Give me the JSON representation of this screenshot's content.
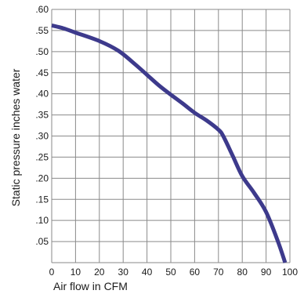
{
  "chart_data": {
    "type": "line",
    "title": "",
    "xlabel": "Air flow in CFM",
    "ylabel": "Static pressure inches water",
    "xlim": [
      0,
      100
    ],
    "ylim": [
      0,
      0.6
    ],
    "grid": true,
    "x_ticks": [
      0,
      10,
      20,
      30,
      40,
      50,
      60,
      70,
      80,
      90,
      100
    ],
    "x_tick_labels": [
      "0",
      "10",
      "20",
      "30",
      "40",
      "50",
      "60",
      "70",
      "80",
      "90",
      "100"
    ],
    "y_ticks": [
      0.05,
      0.1,
      0.15,
      0.2,
      0.25,
      0.3,
      0.35,
      0.4,
      0.45,
      0.5,
      0.55,
      0.6
    ],
    "y_tick_labels": [
      ".05",
      ".10",
      ".15",
      ".20",
      ".25",
      ".30",
      ".35",
      ".40",
      ".45",
      ".50",
      ".55",
      ".60"
    ],
    "colors": {
      "line": "#3d3a8c",
      "grid": "#8a8a8a",
      "text": "#1a1a1a"
    },
    "series": [
      {
        "x": [
          0,
          5,
          10,
          20,
          28,
          35,
          40,
          45,
          50,
          55,
          60,
          65,
          70,
          72,
          76,
          80,
          85,
          90,
          95,
          98
        ],
        "y": [
          0.562,
          0.555,
          0.545,
          0.525,
          0.502,
          0.47,
          0.445,
          0.42,
          0.398,
          0.377,
          0.355,
          0.337,
          0.315,
          0.3,
          0.253,
          0.205,
          0.165,
          0.12,
          0.05,
          0.0
        ]
      }
    ]
  }
}
